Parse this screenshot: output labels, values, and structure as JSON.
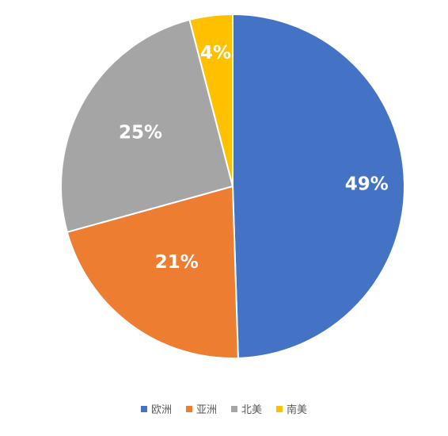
{
  "chart_data": {
    "type": "pie",
    "slices": [
      {
        "label": "欧洲",
        "value": 49,
        "display": "49%",
        "color": "#4472c4"
      },
      {
        "label": "亚洲",
        "value": 21,
        "display": "21%",
        "color": "#ed7d31"
      },
      {
        "label": "北美",
        "value": 25,
        "display": "25%",
        "color": "#a5a5a5"
      },
      {
        "label": "南美",
        "value": 4,
        "display": "4%",
        "color": "#ffc000"
      }
    ],
    "legend_position": "bottom",
    "start_angle": "12 o'clock, clockwise"
  }
}
